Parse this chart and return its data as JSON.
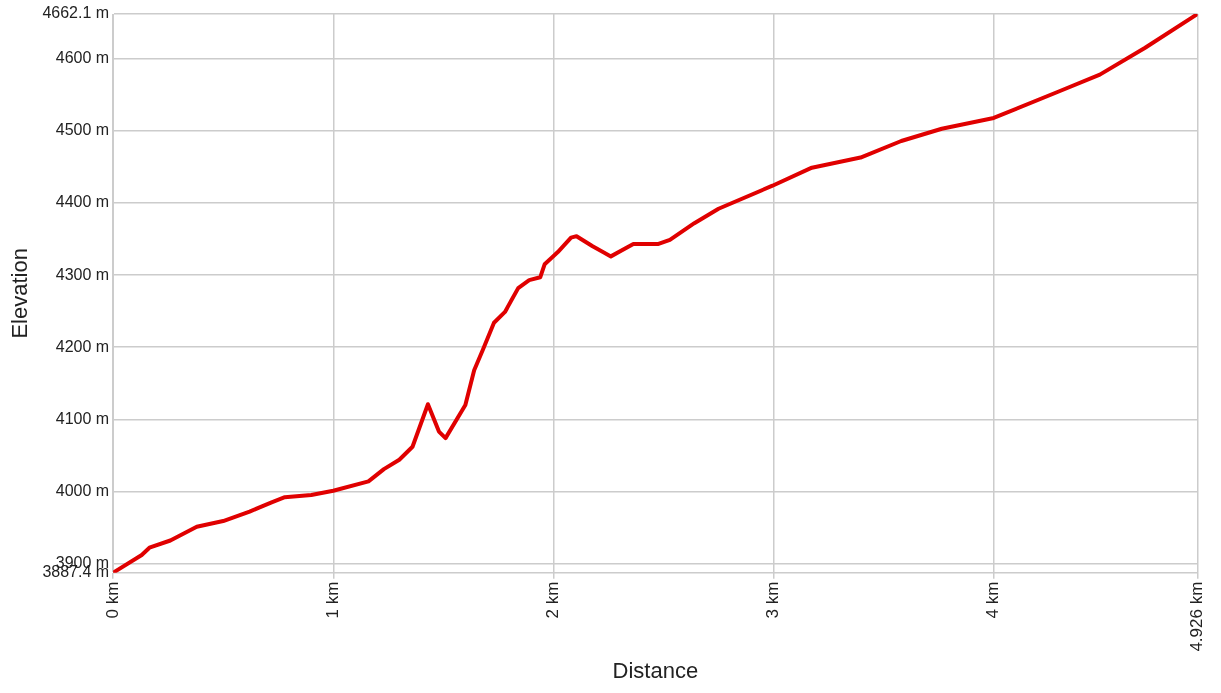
{
  "chart_data": {
    "type": "line",
    "xlabel": "Distance",
    "ylabel": "Elevation",
    "xlim": [
      0,
      4.926
    ],
    "ylim": [
      3887.4,
      4662.1
    ],
    "xticks": [
      {
        "value": 0,
        "label": "0 km"
      },
      {
        "value": 1,
        "label": "1 km"
      },
      {
        "value": 2,
        "label": "2 km"
      },
      {
        "value": 3,
        "label": "3 km"
      },
      {
        "value": 4,
        "label": "4 km"
      },
      {
        "value": 4.926,
        "label": "4.926 km"
      }
    ],
    "yticks": [
      {
        "value": 3887.4,
        "label": "3887.4 m"
      },
      {
        "value": 3900,
        "label": "3900 m"
      },
      {
        "value": 4000,
        "label": "4000 m"
      },
      {
        "value": 4100,
        "label": "4100 m"
      },
      {
        "value": 4200,
        "label": "4200 m"
      },
      {
        "value": 4300,
        "label": "4300 m"
      },
      {
        "value": 4400,
        "label": "4400 m"
      },
      {
        "value": 4500,
        "label": "4500 m"
      },
      {
        "value": 4600,
        "label": "4600 m"
      },
      {
        "value": 4662.1,
        "label": "4662.1 m"
      }
    ],
    "grid": true,
    "legend": false,
    "marker": "none",
    "line_style": "solid",
    "x": [
      0,
      0.13,
      0.165,
      0.26,
      0.38,
      0.5,
      0.62,
      0.72,
      0.78,
      0.9,
      1.0,
      1.16,
      1.23,
      1.3,
      1.36,
      1.43,
      1.48,
      1.51,
      1.6,
      1.64,
      1.68,
      1.73,
      1.78,
      1.84,
      1.89,
      1.94,
      1.96,
      2.02,
      2.08,
      2.105,
      2.178,
      2.261,
      2.363,
      2.474,
      2.529,
      2.64,
      2.75,
      2.995,
      3.174,
      3.395,
      3.58,
      3.764,
      4.0,
      4.298,
      4.482,
      4.686,
      4.926
    ],
    "series": [
      {
        "color": "#e00000",
        "values": [
          3887.4,
          3912,
          3922,
          3932,
          3951,
          3959,
          3972,
          3985,
          3992,
          3995,
          4001,
          4014,
          4031,
          4044,
          4062,
          4121,
          4083,
          4074,
          4120,
          4168,
          4197,
          4234,
          4249,
          4282,
          4293,
          4297,
          4315,
          4332,
          4352,
          4354,
          4340,
          4326,
          4343,
          4343,
          4349,
          4372,
          4392,
          4424,
          4449,
          4463,
          4486,
          4503,
          4518,
          4555,
          4578,
          4615,
          4662.1
        ]
      }
    ]
  }
}
